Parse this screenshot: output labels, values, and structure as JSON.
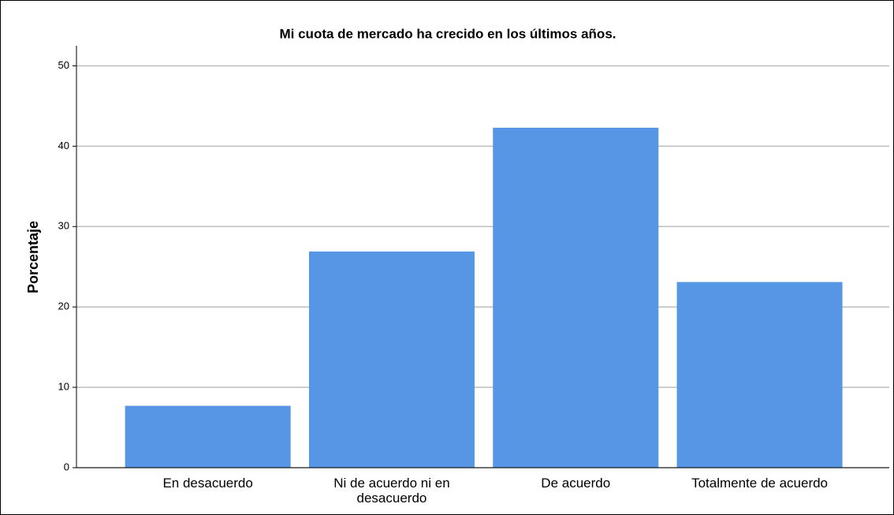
{
  "chart_data": {
    "type": "bar",
    "title": "Mi cuota de mercado ha crecido en los últimos años.",
    "y_label": "Porcentaje",
    "categories": [
      "En desacuerdo",
      "Ni de acuerdo ni en desacuerdo",
      "De acuerdo",
      "Totalmente de acuerdo"
    ],
    "values": [
      7.7,
      26.9,
      42.3,
      23.1
    ],
    "color": "#5696e4",
    "ylim": [
      0,
      52.5
    ],
    "yticks": [
      0,
      10,
      20,
      30,
      40,
      50
    ],
    "grid": true
  }
}
